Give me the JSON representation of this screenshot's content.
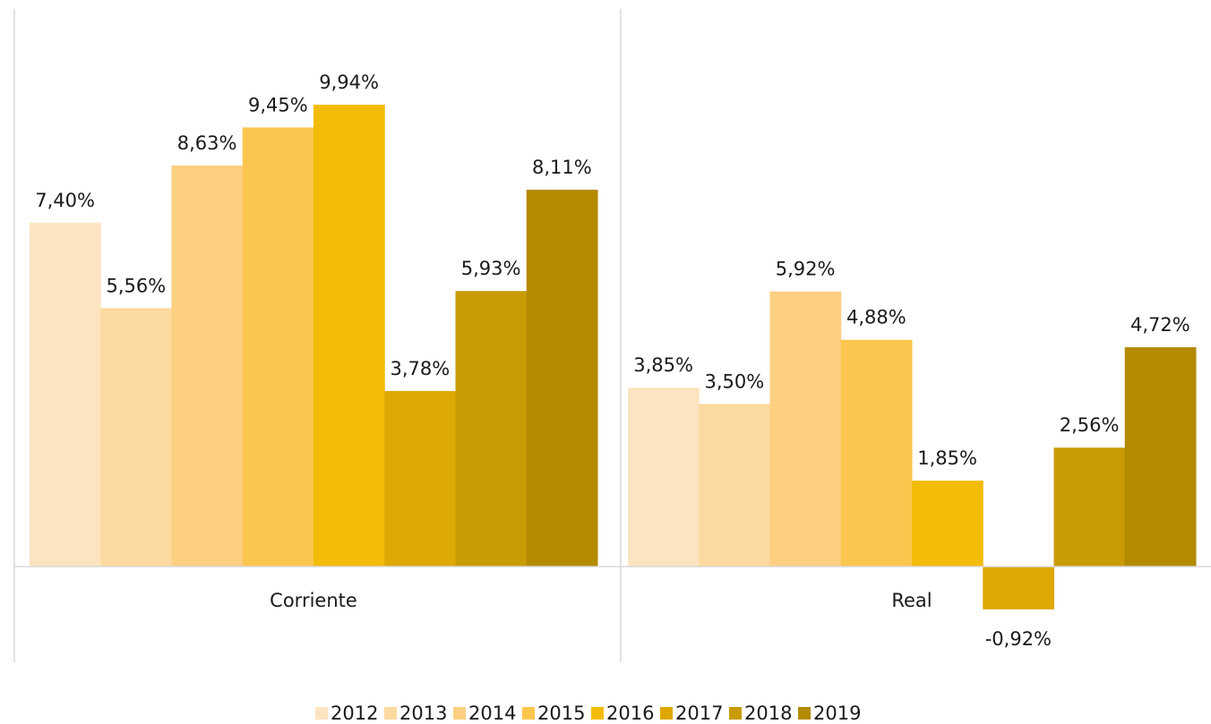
{
  "chart_data": {
    "type": "bar",
    "categories": [
      "Corriente",
      "Real"
    ],
    "ylim": [
      -2,
      12
    ],
    "series": [
      {
        "name": "2012",
        "color": "#fde4c0",
        "values": [
          7.4,
          3.85
        ],
        "value_labels": [
          "7,40%",
          "3,85%"
        ]
      },
      {
        "name": "2013",
        "color": "#fcd99e",
        "values": [
          5.56,
          3.5
        ],
        "value_labels": [
          "5,56%",
          "3,50%"
        ]
      },
      {
        "name": "2014",
        "color": "#fccf81",
        "values": [
          8.63,
          5.92
        ],
        "value_labels": [
          "8,63%",
          "5,92%"
        ]
      },
      {
        "name": "2015",
        "color": "#fcc64e",
        "values": [
          9.45,
          4.88
        ],
        "value_labels": [
          "9,45%",
          "4,88%"
        ]
      },
      {
        "name": "2016",
        "color": "#f3bc08",
        "values": [
          9.94,
          1.85
        ],
        "value_labels": [
          "9,94%",
          "1,85%"
        ]
      },
      {
        "name": "2017",
        "color": "#dea805",
        "values": [
          3.78,
          -0.92
        ],
        "value_labels": [
          "3,78%",
          "-0,92%"
        ]
      },
      {
        "name": "2018",
        "color": "#c99b05",
        "values": [
          5.93,
          2.56
        ],
        "value_labels": [
          "5,93%",
          "2,56%"
        ]
      },
      {
        "name": "2019",
        "color": "#b38a00",
        "values": [
          8.11,
          4.72
        ],
        "value_labels": [
          "8,11%",
          "4,72%"
        ]
      }
    ],
    "legend": "bottom"
  }
}
